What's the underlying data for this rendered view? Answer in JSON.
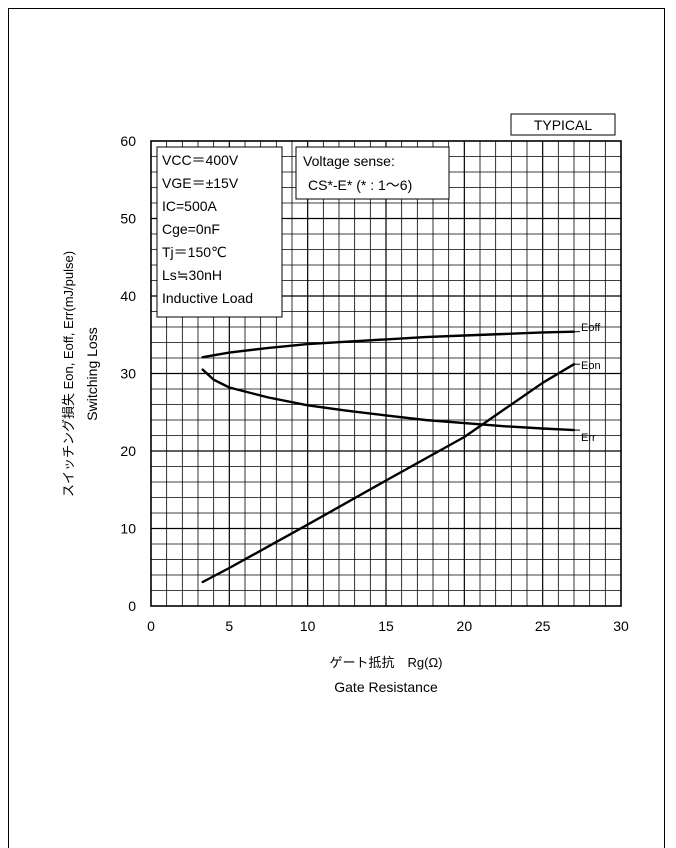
{
  "badge": "TYPICAL",
  "conditions": [
    "VCC＝400V",
    "VGE＝±15V",
    "IC=500A",
    "Cge=0nF",
    "Tj＝150℃",
    "Ls≒30nH",
    "Inductive Load"
  ],
  "note": [
    "Voltage sense:",
    "CS*-E* (* : 1～6)"
  ],
  "chart_data": {
    "type": "line",
    "xlabel": "ゲート抵抗　Rg(Ω)",
    "xlabel2": "Gate Resistance",
    "ylabel": "スイッチング損失 Eon, Eoff, Err(mJ/pulse)",
    "ylabel2": "Switching Loss",
    "xlim": [
      0,
      30
    ],
    "ylim": [
      0,
      60
    ],
    "xticks": [
      0,
      5,
      10,
      15,
      20,
      25,
      30
    ],
    "yticks": [
      0,
      10,
      20,
      30,
      40,
      50,
      60
    ],
    "grid": true,
    "series": [
      {
        "name": "Eoff",
        "x": [
          3.3,
          5,
          7.5,
          10,
          12.5,
          15,
          17.5,
          20,
          22.5,
          25,
          27
        ],
        "y": [
          32.1,
          32.7,
          33.3,
          33.8,
          34.1,
          34.4,
          34.7,
          34.9,
          35.1,
          35.3,
          35.4
        ]
      },
      {
        "name": "Eon",
        "x": [
          3.3,
          5,
          10,
          15,
          20,
          25,
          27
        ],
        "y": [
          3.1,
          4.9,
          10.5,
          16.2,
          21.8,
          28.8,
          31.2
        ]
      },
      {
        "name": "Err",
        "x": [
          3.3,
          4,
          5,
          7.5,
          10,
          12.5,
          15,
          17.5,
          20,
          22.5,
          25,
          27
        ],
        "y": [
          30.5,
          29.2,
          28.2,
          26.9,
          25.9,
          25.2,
          24.6,
          24.0,
          23.6,
          23.2,
          22.9,
          22.7
        ]
      }
    ]
  }
}
